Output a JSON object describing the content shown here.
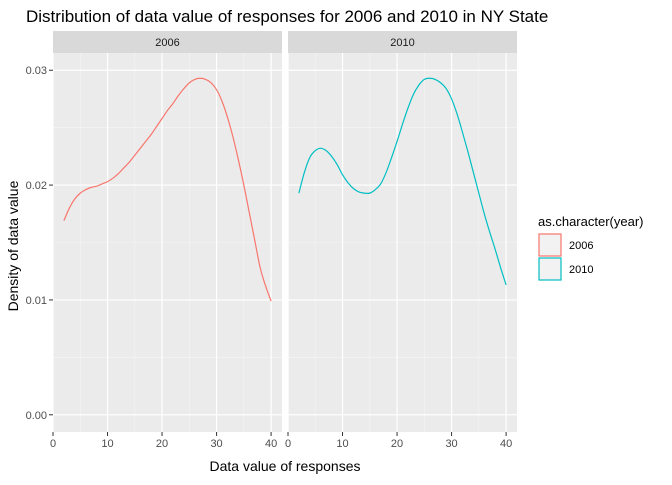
{
  "chart_data": {
    "type": "line",
    "subtype": "density",
    "title": "Distribution of data value of responses for 2006 and 2010 in NY State",
    "xlabel": "Data value of responses",
    "ylabel": "Density of data value",
    "xlim": [
      0,
      42
    ],
    "ylim": [
      -0.0015,
      0.0315
    ],
    "x_ticks": [
      0,
      10,
      20,
      30,
      40
    ],
    "x_tick_labels": [
      "0",
      "10",
      "20",
      "30",
      "40"
    ],
    "y_ticks": [
      0.0,
      0.01,
      0.02,
      0.03
    ],
    "y_tick_labels": [
      "0.00",
      "0.01",
      "0.02",
      "0.03"
    ],
    "grid": true,
    "legend": {
      "title": "as.character(year)",
      "position": "right",
      "entries": [
        "2006",
        "2010"
      ]
    },
    "facets": [
      {
        "label": "2006",
        "series": [
          {
            "name": "2006",
            "color": "#F8766D",
            "x": [
              2,
              3,
              4,
              5,
              6,
              7,
              8,
              9,
              10,
              11,
              12,
              13,
              14,
              15,
              16,
              17,
              18,
              19,
              20,
              21,
              22,
              23,
              24,
              25,
              26,
              27,
              28,
              29,
              30,
              31,
              32,
              33,
              34,
              35,
              36,
              37,
              38,
              39,
              40
            ],
            "y": [
              0.0169,
              0.018,
              0.0188,
              0.0193,
              0.0196,
              0.0198,
              0.0199,
              0.0201,
              0.0203,
              0.0206,
              0.021,
              0.0215,
              0.022,
              0.0226,
              0.0232,
              0.0238,
              0.0244,
              0.0251,
              0.0258,
              0.0265,
              0.0271,
              0.0278,
              0.0284,
              0.0289,
              0.0292,
              0.0293,
              0.0292,
              0.0289,
              0.0283,
              0.0273,
              0.0259,
              0.0242,
              0.0222,
              0.02,
              0.0176,
              0.0152,
              0.0128,
              0.0112,
              0.0099
            ]
          }
        ]
      },
      {
        "label": "2010",
        "series": [
          {
            "name": "2010",
            "color": "#00BFC4",
            "x": [
              2,
              3,
              4,
              5,
              6,
              7,
              8,
              9,
              10,
              11,
              12,
              13,
              14,
              15,
              16,
              17,
              18,
              19,
              20,
              21,
              22,
              23,
              24,
              25,
              26,
              27,
              28,
              29,
              30,
              31,
              32,
              33,
              34,
              35,
              36,
              37,
              38,
              39,
              40
            ],
            "y": [
              0.0193,
              0.0211,
              0.0224,
              0.023,
              0.0232,
              0.023,
              0.0225,
              0.0218,
              0.0209,
              0.0202,
              0.0197,
              0.0194,
              0.0193,
              0.0193,
              0.0196,
              0.0201,
              0.0211,
              0.0224,
              0.0238,
              0.0253,
              0.0267,
              0.0279,
              0.0287,
              0.0292,
              0.0293,
              0.0292,
              0.0289,
              0.0284,
              0.0275,
              0.0262,
              0.0246,
              0.0229,
              0.0211,
              0.0193,
              0.0175,
              0.0159,
              0.0144,
              0.0128,
              0.0113
            ]
          }
        ]
      }
    ]
  }
}
